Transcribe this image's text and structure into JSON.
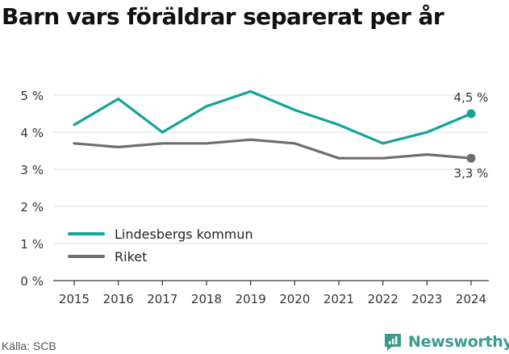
{
  "title": "Barn vars föräldrar separerat per år",
  "source": "Källa: SCB",
  "brand": {
    "name": "Newsworthy",
    "icon": "newsworthy-logo-icon",
    "color": "#3b9c8e"
  },
  "chart_data": {
    "type": "line",
    "title": "Barn vars föräldrar separerat per år",
    "xlabel": "",
    "ylabel": "",
    "x": [
      2015,
      2016,
      2017,
      2018,
      2019,
      2020,
      2021,
      2022,
      2023,
      2024
    ],
    "ylim": [
      0,
      5
    ],
    "yticks": [
      0,
      1,
      2,
      3,
      4,
      5
    ],
    "ytick_labels": [
      "0 %",
      "1 %",
      "2 %",
      "3 %",
      "4 %",
      "5 %"
    ],
    "grid": true,
    "legend_position": "bottom-left",
    "series": [
      {
        "name": "Lindesbergs kommun",
        "color": "#13a397",
        "values": [
          4.2,
          4.9,
          4.0,
          4.7,
          5.1,
          4.6,
          4.2,
          3.7,
          4.0,
          4.5
        ],
        "end_label": "4,5 %"
      },
      {
        "name": "Riket",
        "color": "#6e6d72",
        "values": [
          3.7,
          3.6,
          3.7,
          3.7,
          3.8,
          3.7,
          3.3,
          3.3,
          3.4,
          3.3
        ],
        "end_label": "3,3 %"
      }
    ]
  }
}
